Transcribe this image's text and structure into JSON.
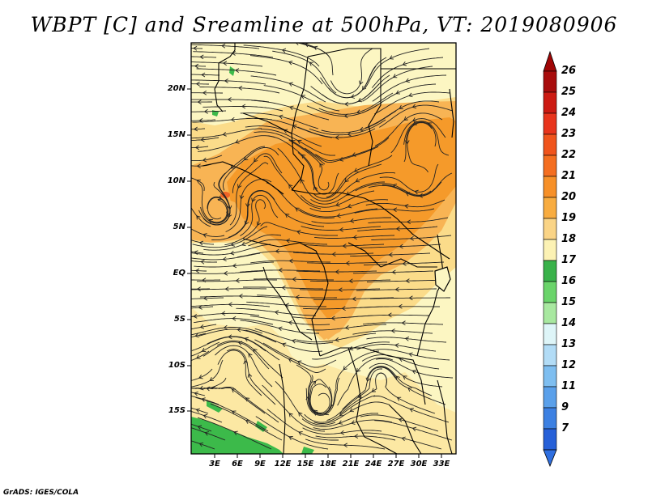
{
  "title": "WBPT [C] and Sreamline at 500hPa, VT: 2019080906",
  "credit": "GrADS: IGES/COLA",
  "map": {
    "lat_labels": [
      "20N",
      "15N",
      "10N",
      "5N",
      "EQ",
      "5S",
      "10S",
      "15S"
    ],
    "lon_labels": [
      "3E",
      "6E",
      "9E",
      "12E",
      "15E",
      "18E",
      "21E",
      "24E",
      "27E",
      "30E",
      "33E"
    ],
    "fill_colors": {
      "light_yellow": "#fcf6c2",
      "yellow": "#fbdc8a",
      "light_orange": "#f8b454",
      "orange": "#f59a2a",
      "red_orange": "#f06426",
      "green": "#3cba4a"
    }
  },
  "colorbar": {
    "labels": [
      "26",
      "25",
      "24",
      "23",
      "22",
      "21",
      "20",
      "19",
      "18",
      "17",
      "16",
      "15",
      "14",
      "13",
      "12",
      "11",
      "9",
      "7"
    ],
    "colors": [
      "#a80c0c",
      "#cc1a12",
      "#e8341c",
      "#f0541c",
      "#f46e20",
      "#f79028",
      "#f8ac40",
      "#fad486",
      "#fcf2b4",
      "#39b24a",
      "#6ad46a",
      "#a8e8a0",
      "#def5f8",
      "#b2dcf6",
      "#7ebef0",
      "#5aa0ea",
      "#3c80e2",
      "#2660d8"
    ],
    "top_color": "#a00606",
    "bottom_color": "#2f6fe0"
  }
}
